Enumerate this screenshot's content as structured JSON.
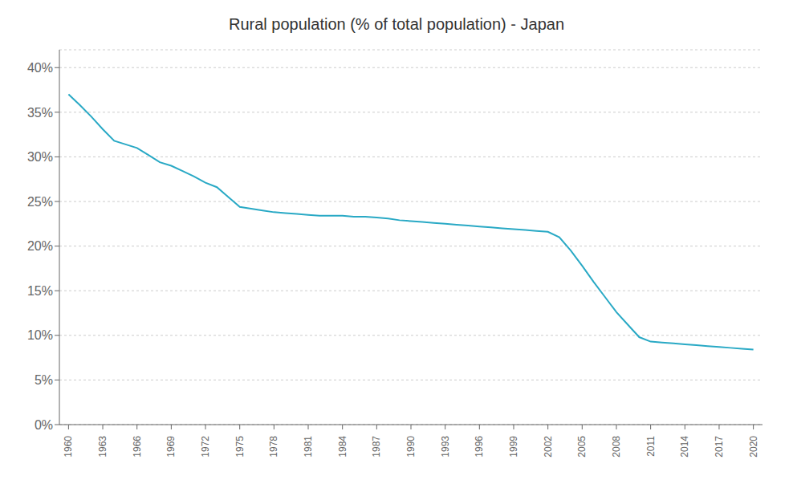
{
  "chart_data": {
    "type": "line",
    "title": "Rural population (% of total population) - Japan",
    "x": [
      1960,
      1961,
      1962,
      1963,
      1964,
      1965,
      1966,
      1967,
      1968,
      1969,
      1970,
      1971,
      1972,
      1973,
      1974,
      1975,
      1976,
      1977,
      1978,
      1979,
      1980,
      1981,
      1982,
      1983,
      1984,
      1985,
      1986,
      1987,
      1988,
      1989,
      1990,
      1991,
      1992,
      1993,
      1994,
      1995,
      1996,
      1997,
      1998,
      1999,
      2000,
      2001,
      2002,
      2003,
      2004,
      2005,
      2006,
      2007,
      2008,
      2009,
      2010,
      2011,
      2012,
      2013,
      2014,
      2015,
      2016,
      2017,
      2018,
      2019,
      2020
    ],
    "values": [
      0.37,
      0.358,
      0.345,
      0.331,
      0.318,
      0.314,
      0.31,
      0.302,
      0.294,
      0.29,
      0.284,
      0.278,
      0.271,
      0.266,
      0.255,
      0.244,
      0.242,
      0.24,
      0.238,
      0.237,
      0.236,
      0.235,
      0.234,
      0.234,
      0.234,
      0.233,
      0.233,
      0.232,
      0.231,
      0.229,
      0.228,
      0.227,
      0.226,
      0.225,
      0.224,
      0.223,
      0.222,
      0.221,
      0.22,
      0.219,
      0.218,
      0.217,
      0.216,
      0.21,
      0.195,
      0.178,
      0.16,
      0.143,
      0.126,
      0.112,
      0.098,
      0.093,
      0.092,
      0.091,
      0.09,
      0.089,
      0.088,
      0.087,
      0.086,
      0.085,
      0.084
    ],
    "color": "#29a9c5",
    "xlim": [
      1959.2,
      2020.8
    ],
    "xticks": [
      1960,
      1963,
      1966,
      1969,
      1972,
      1975,
      1978,
      1981,
      1984,
      1987,
      1990,
      1993,
      1996,
      1999,
      2002,
      2005,
      2008,
      2011,
      2014,
      2017,
      2020
    ],
    "ylim": [
      0,
      0.42
    ],
    "yticks": [
      {
        "value": 0.0,
        "label": "0%"
      },
      {
        "value": 0.05,
        "label": "5%"
      },
      {
        "value": 0.1,
        "label": "10%"
      },
      {
        "value": 0.15,
        "label": "15%"
      },
      {
        "value": 0.2,
        "label": "20%"
      },
      {
        "value": 0.25,
        "label": "25%"
      },
      {
        "value": 0.3,
        "label": "30%"
      },
      {
        "value": 0.35,
        "label": "35%"
      },
      {
        "value": 0.4,
        "label": "40%"
      }
    ],
    "grid": "y"
  }
}
